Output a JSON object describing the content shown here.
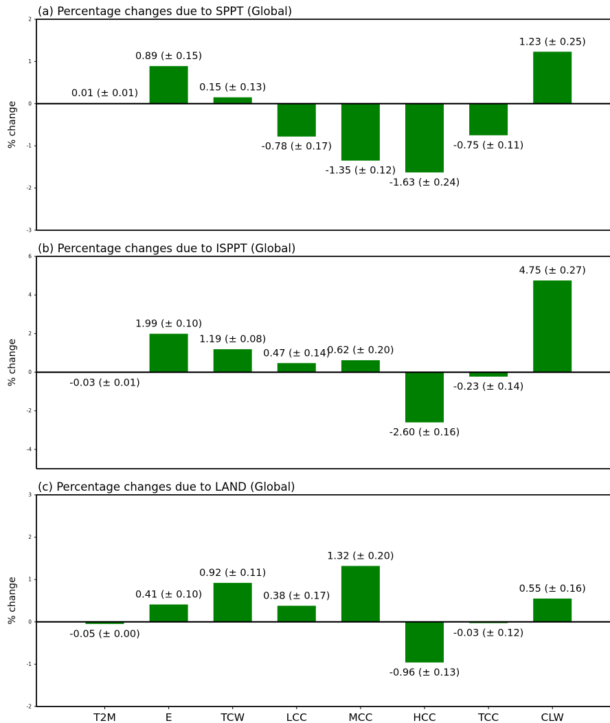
{
  "chart_data": [
    {
      "type": "bar",
      "title": "(a) Percentage changes due to SPPT (Global)",
      "ylabel": "% change",
      "ylim": [
        -3,
        2
      ],
      "yticks": [
        -3,
        -2,
        -1,
        0,
        1,
        2
      ],
      "categories": [
        "T2M",
        "E",
        "TCW",
        "LCC",
        "MCC",
        "HCC",
        "TCC",
        "CLW"
      ],
      "values": [
        0.01,
        0.89,
        0.15,
        -0.78,
        -1.35,
        -1.63,
        -0.75,
        1.23
      ],
      "labels": [
        "0.01 (± 0.01)",
        "0.89 (± 0.15)",
        "0.15 (± 0.13)",
        "-0.78 (± 0.17)",
        "-1.35 (± 0.12)",
        "-1.63 (± 0.24)",
        "-0.75 (± 0.11)",
        "1.23 (± 0.25)"
      ],
      "bar_color": "#008000"
    },
    {
      "type": "bar",
      "title": "(b) Percentage changes due to ISPPT (Global)",
      "ylabel": "% change",
      "ylim": [
        -5,
        6
      ],
      "yticks": [
        -4,
        -2,
        0,
        2,
        4,
        6
      ],
      "categories": [
        "T2M",
        "E",
        "TCW",
        "LCC",
        "MCC",
        "HCC",
        "TCC",
        "CLW"
      ],
      "values": [
        -0.03,
        1.99,
        1.19,
        0.47,
        0.62,
        -2.6,
        -0.23,
        4.75
      ],
      "labels": [
        "-0.03 (± 0.01)",
        "1.99 (± 0.10)",
        "1.19 (± 0.08)",
        "0.47 (± 0.14)",
        "0.62 (± 0.20)",
        "-2.60 (± 0.16)",
        "-0.23 (± 0.14)",
        "4.75 (± 0.27)"
      ],
      "bar_color": "#008000"
    },
    {
      "type": "bar",
      "title": "(c) Percentage changes due to LAND (Global)",
      "ylabel": "% change",
      "ylim": [
        -2,
        3
      ],
      "yticks": [
        -2,
        -1,
        0,
        1,
        2,
        3
      ],
      "categories": [
        "T2M",
        "E",
        "TCW",
        "LCC",
        "MCC",
        "HCC",
        "TCC",
        "CLW"
      ],
      "values": [
        -0.05,
        0.41,
        0.92,
        0.38,
        1.32,
        -0.96,
        -0.03,
        0.55
      ],
      "labels": [
        "-0.05 (± 0.00)",
        "0.41 (± 0.10)",
        "0.92 (± 0.11)",
        "0.38 (± 0.17)",
        "1.32 (± 0.20)",
        "-0.96 (± 0.13)",
        "-0.03 (± 0.12)",
        "0.55 (± 0.16)"
      ],
      "bar_color": "#008000",
      "show_xticklabels": true
    }
  ]
}
